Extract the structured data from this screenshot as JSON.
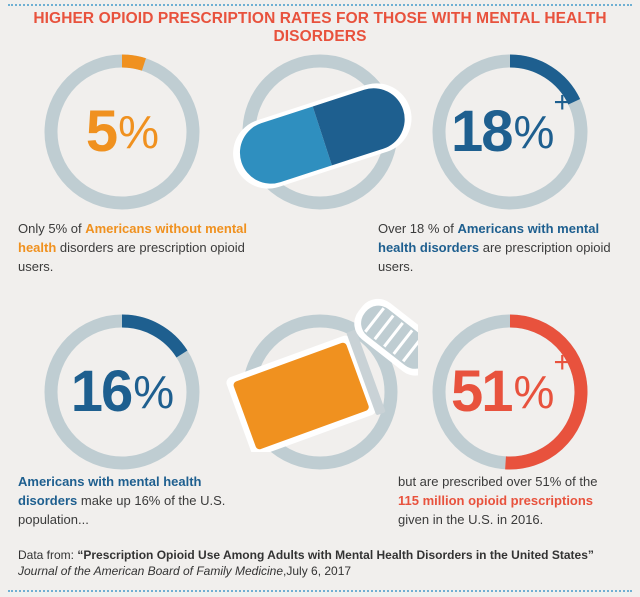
{
  "title": "HIGHER OPIOID PRESCRIPTION RATES FOR THOSE WITH MENTAL HEALTH DISORDERS",
  "colors": {
    "orange": "#f0911f",
    "blue": "#1e5f8f",
    "red": "#e8523d",
    "track": "#bfcdd2",
    "accent_line": "#6fb0d3"
  },
  "chart_data": [
    {
      "type": "pie",
      "values": [
        5,
        95
      ],
      "display": {
        "num": "5",
        "sym": "%",
        "plus": ""
      },
      "color": "#f0911f",
      "caption": {
        "pre": "Only 5% of ",
        "bold1": "Americans without mental",
        "bold2": "health",
        "post": " disorders are prescription opioid users."
      }
    },
    {
      "type": "pie",
      "values": [
        18,
        82
      ],
      "display": {
        "num": "18",
        "sym": "%",
        "plus": "+"
      },
      "color": "#1e5f8f",
      "caption": {
        "pre": "Over 18 % of ",
        "bold1": "Americans with mental",
        "bold2": "health disorders",
        "post": " are prescription opioid users."
      }
    },
    {
      "type": "pie",
      "values": [
        16,
        84
      ],
      "display": {
        "num": "16",
        "sym": "%",
        "plus": ""
      },
      "color": "#1e5f8f",
      "caption": {
        "bold1": "Americans with mental health",
        "bold2": "disorders",
        "post": " make up 16% of the U.S. population..."
      }
    },
    {
      "type": "pie",
      "values": [
        51,
        49
      ],
      "display": {
        "num": "51",
        "sym": "%",
        "plus": "+"
      },
      "color": "#e8523d",
      "caption": {
        "pre": "but are prescribed over 51% of the",
        "bold1": "115 million opioid prescriptions",
        "post": "given in the U.S. in 2016."
      }
    }
  ],
  "source": {
    "prefix": "Data from: ",
    "title": "“Prescription Opioid Use Among Adults with Mental Health Disorders in the United States”",
    "journal": "Journal of the American Board of Family Medicine",
    "date": ",July 6, 2017"
  }
}
